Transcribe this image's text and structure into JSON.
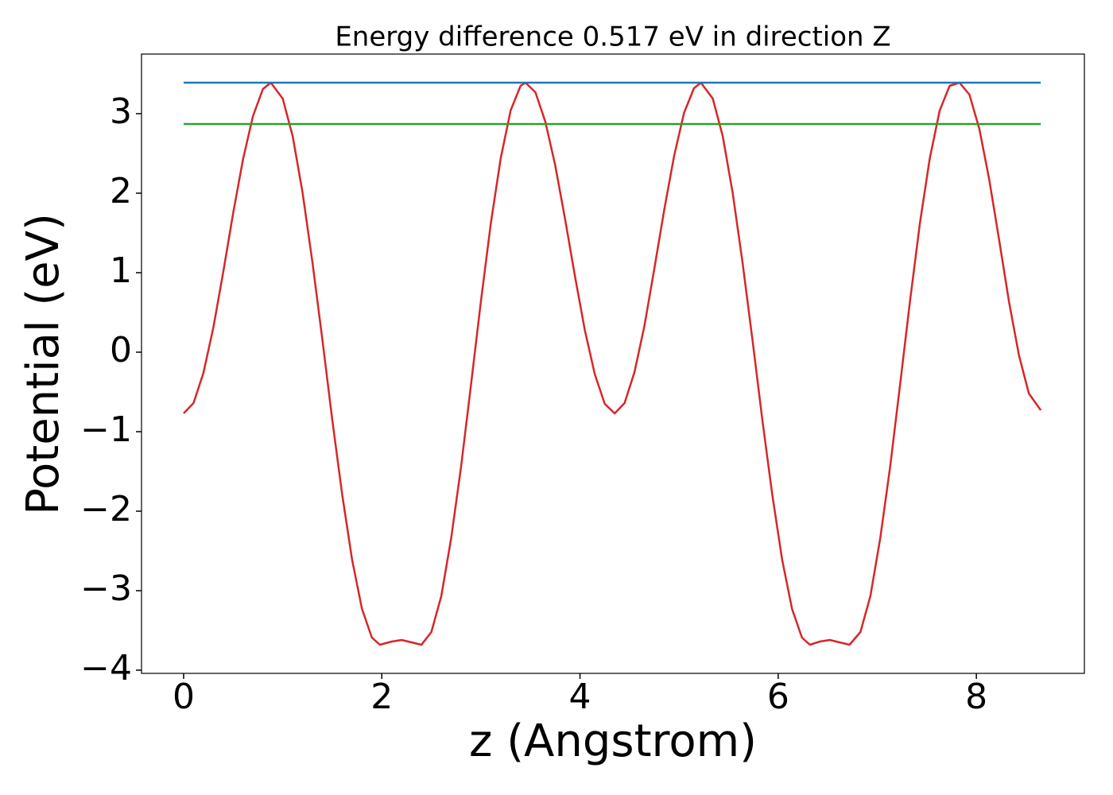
{
  "chart_data": {
    "type": "line",
    "title": "Energy difference 0.517 eV in direction Z",
    "x_label": "z (Angstrom)",
    "y_label": "Potential (eV)",
    "xlim": [
      -0.425,
      9.09
    ],
    "ylim": [
      -4.04,
      3.75
    ],
    "xticks": [
      0,
      2,
      4,
      6,
      8
    ],
    "yticks": [
      {
        "value": -4,
        "label": "−4"
      },
      {
        "value": -3,
        "label": "−3"
      },
      {
        "value": -2,
        "label": "−2"
      },
      {
        "value": -1,
        "label": "−1"
      },
      0,
      1,
      2,
      3
    ],
    "series": [
      {
        "color": "#d62728",
        "x": [
          0,
          0.1,
          0.2,
          0.3,
          0.4,
          0.5,
          0.6,
          0.7,
          0.8,
          0.88,
          1.0,
          1.1,
          1.2,
          1.3,
          1.4,
          1.5,
          1.6,
          1.7,
          1.8,
          1.9,
          1.98,
          2.1,
          2.2,
          2.3,
          2.4,
          2.5,
          2.6,
          2.7,
          2.8,
          2.9,
          3.0,
          3.1,
          3.2,
          3.3,
          3.4,
          3.45,
          3.55,
          3.65,
          3.75,
          3.85,
          3.95,
          4.05,
          4.15,
          4.25,
          4.35,
          4.45,
          4.55,
          4.65,
          4.75,
          4.85,
          4.95,
          5.05,
          5.15,
          5.22,
          5.34,
          5.44,
          5.54,
          5.64,
          5.74,
          5.84,
          5.94,
          6.04,
          6.14,
          6.24,
          6.32,
          6.42,
          6.52,
          6.62,
          6.72,
          6.83,
          6.93,
          7.03,
          7.13,
          7.23,
          7.33,
          7.43,
          7.53,
          7.63,
          7.73,
          7.83,
          7.93,
          8.03,
          8.13,
          8.23,
          8.33,
          8.43,
          8.53,
          8.65
        ],
        "values": [
          -0.77,
          -0.64,
          -0.26,
          0.31,
          1.01,
          1.75,
          2.43,
          2.97,
          3.31,
          3.39,
          3.19,
          2.72,
          2.01,
          1.13,
          0.16,
          -0.85,
          -1.79,
          -2.61,
          -3.23,
          -3.59,
          -3.68,
          -3.64,
          -3.62,
          -3.65,
          -3.68,
          -3.52,
          -3.07,
          -2.34,
          -1.44,
          -0.41,
          0.64,
          1.62,
          2.44,
          3.04,
          3.35,
          3.39,
          3.27,
          2.9,
          2.35,
          1.67,
          0.95,
          0.27,
          -0.28,
          -0.65,
          -0.77,
          -0.64,
          -0.25,
          0.33,
          1.05,
          1.79,
          2.47,
          3.01,
          3.32,
          3.39,
          3.19,
          2.72,
          2.01,
          1.13,
          0.16,
          -0.85,
          -1.79,
          -2.61,
          -3.23,
          -3.59,
          -3.68,
          -3.64,
          -3.62,
          -3.65,
          -3.68,
          -3.52,
          -3.07,
          -2.34,
          -1.44,
          -0.41,
          0.64,
          1.62,
          2.44,
          3.04,
          3.35,
          3.39,
          3.24,
          2.81,
          2.17,
          1.41,
          0.63,
          -0.04,
          -0.52,
          -0.73
        ]
      },
      {
        "color": "#1f77b4",
        "x": [
          0,
          8.65
        ],
        "values": [
          3.39,
          3.39
        ]
      },
      {
        "color": "#2ca02c",
        "x": [
          0,
          8.65
        ],
        "values": [
          2.87,
          2.87
        ]
      }
    ]
  }
}
